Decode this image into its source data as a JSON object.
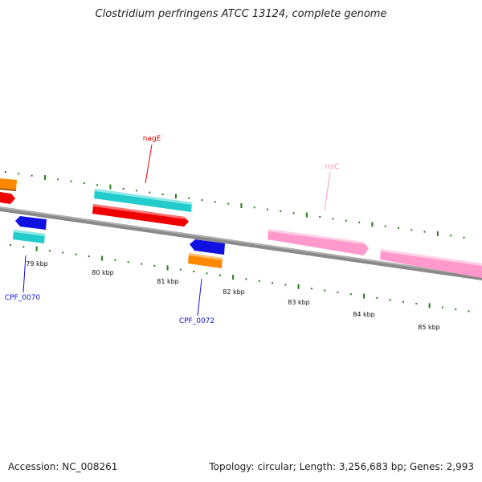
{
  "title": "Clostridium perfringens ATCC 13124, complete genome",
  "footer": {
    "accession": "Accession: NC_008261",
    "summary": "Topology: circular; Length: 3,256,683 bp; Genes: 2,993"
  },
  "colors": {
    "backbone": "#8a8a8a",
    "tick": "#2a7a1e",
    "red": "#ee0000",
    "cyan": "#22cccc",
    "orange": "#ff8800",
    "blue": "#1010e0",
    "pink": "#ff99cc"
  },
  "kbp_labels": [
    "79 kbp",
    "80 kbp",
    "81 kbp",
    "82 kbp",
    "83 kbp",
    "84 kbp",
    "85 kbp"
  ],
  "gene_labels": {
    "nagE": "nagE",
    "rrsC": "rrsC",
    "cpf0070": "CPF_0070",
    "cpf0072": "CPF_0072"
  }
}
